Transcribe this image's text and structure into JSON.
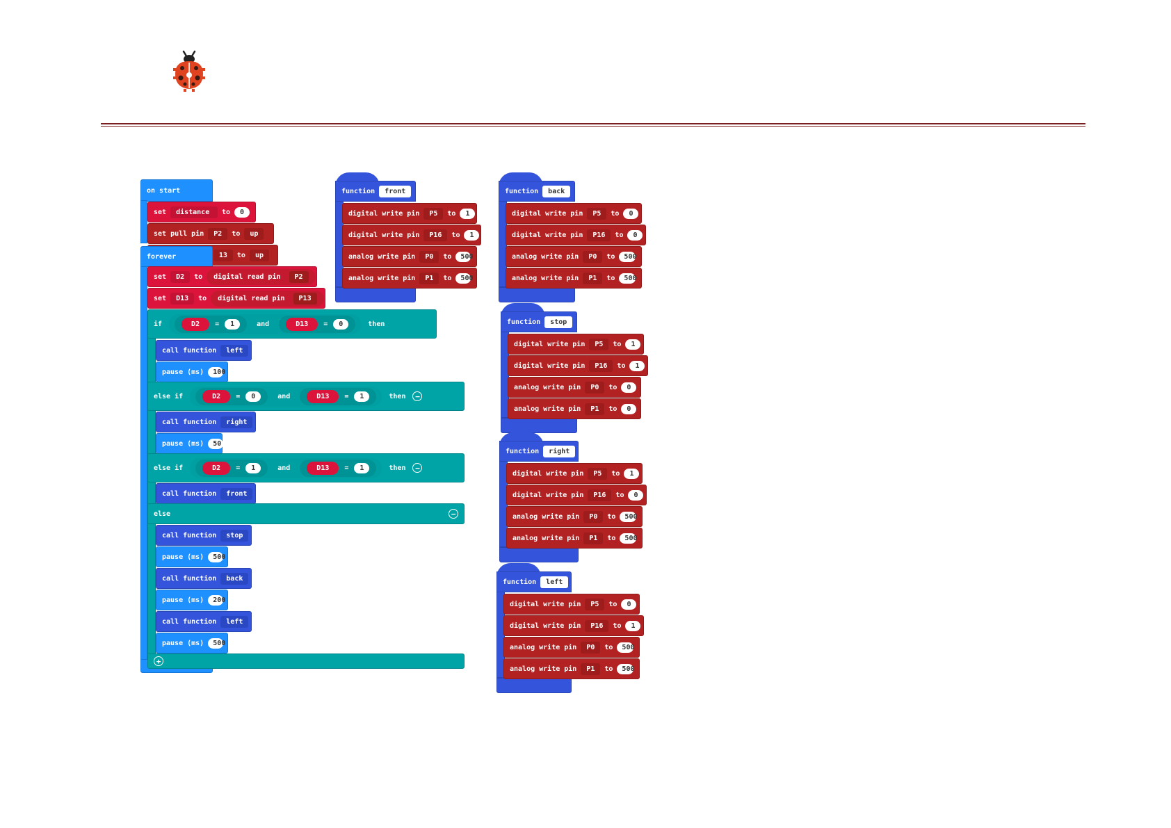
{
  "colors": {
    "event": "#1e90ff",
    "variables": "#dc143c",
    "pins": "#b22222",
    "functions": "#3455db",
    "logic": "#00a4a6",
    "header_rule": "#7a1f1f"
  },
  "icons": [
    "ladybug-logo-icon",
    "minus-circle-icon",
    "plus-circle-icon"
  ],
  "on_start": {
    "label": "on start",
    "set_kw": "set",
    "var": "distance",
    "to_kw": "to",
    "value": "0",
    "pull1": {
      "label": "set pull pin",
      "pin": "P2",
      "to_kw": "to",
      "mode": "up"
    },
    "pull2": {
      "pin_partial": "13",
      "to_kw": "to",
      "mode": "up"
    }
  },
  "forever": {
    "label": "forever",
    "set_d2": {
      "set_kw": "set",
      "var": "D2",
      "to_kw": "to",
      "fn": "digital read pin",
      "pin": "P2"
    },
    "set_d13": {
      "set_kw": "set",
      "var": "D13",
      "to_kw": "to",
      "fn": "digital read pin",
      "pin": "P13"
    },
    "if_block": {
      "if_kw": "if",
      "a_var": "D2",
      "a_op": "=",
      "a_val": "1",
      "and_kw": "and",
      "b_var": "D13",
      "b_op": "=",
      "b_val": "0",
      "then_kw": "then",
      "call_kw": "call function",
      "call_name": "left",
      "pause_kw": "pause (ms)",
      "pause_val": "100"
    },
    "elseif1": {
      "kw": "else if",
      "a_var": "D2",
      "a_op": "=",
      "a_val": "0",
      "and_kw": "and",
      "b_var": "D13",
      "b_op": "=",
      "b_val": "1",
      "then_kw": "then",
      "call_kw": "call function",
      "call_name": "right",
      "pause_kw": "pause (ms)",
      "pause_val": "50"
    },
    "elseif2": {
      "kw": "else if",
      "a_var": "D2",
      "a_op": "=",
      "a_val": "1",
      "and_kw": "and",
      "b_var": "D13",
      "b_op": "=",
      "b_val": "1",
      "then_kw": "then",
      "call_kw": "call function",
      "call_name": "front"
    },
    "else_block": {
      "kw": "else",
      "s1": {
        "call_kw": "call function",
        "name": "stop"
      },
      "p1": {
        "pause_kw": "pause (ms)",
        "val": "500"
      },
      "s2": {
        "call_kw": "call function",
        "name": "back"
      },
      "p2": {
        "pause_kw": "pause (ms)",
        "val": "200"
      },
      "s3": {
        "call_kw": "call function",
        "name": "left"
      },
      "p3": {
        "pause_kw": "pause (ms)",
        "val": "500"
      }
    }
  },
  "functions": [
    {
      "kw": "function",
      "name": "front",
      "rows": [
        {
          "label": "digital write pin",
          "pin": "P5",
          "to_kw": "to",
          "val": "1"
        },
        {
          "label": "digital write pin",
          "pin": "P16",
          "to_kw": "to",
          "val": "1"
        },
        {
          "label": "analog write pin",
          "pin": "P0",
          "to_kw": "to",
          "val": "500"
        },
        {
          "label": "analog write pin",
          "pin": "P1",
          "to_kw": "to",
          "val": "500"
        }
      ]
    },
    {
      "kw": "function",
      "name": "back",
      "rows": [
        {
          "label": "digital write pin",
          "pin": "P5",
          "to_kw": "to",
          "val": "0"
        },
        {
          "label": "digital write pin",
          "pin": "P16",
          "to_kw": "to",
          "val": "0"
        },
        {
          "label": "analog write pin",
          "pin": "P0",
          "to_kw": "to",
          "val": "500"
        },
        {
          "label": "analog write pin",
          "pin": "P1",
          "to_kw": "to",
          "val": "500"
        }
      ]
    },
    {
      "kw": "function",
      "name": "stop",
      "rows": [
        {
          "label": "digital write pin",
          "pin": "P5",
          "to_kw": "to",
          "val": "1"
        },
        {
          "label": "digital write pin",
          "pin": "P16",
          "to_kw": "to",
          "val": "1"
        },
        {
          "label": "analog write pin",
          "pin": "P0",
          "to_kw": "to",
          "val": "0"
        },
        {
          "label": "analog write pin",
          "pin": "P1",
          "to_kw": "to",
          "val": "0"
        }
      ]
    },
    {
      "kw": "function",
      "name": "right",
      "rows": [
        {
          "label": "digital write pin",
          "pin": "P5",
          "to_kw": "to",
          "val": "1"
        },
        {
          "label": "digital write pin",
          "pin": "P16",
          "to_kw": "to",
          "val": "0"
        },
        {
          "label": "analog write pin",
          "pin": "P0",
          "to_kw": "to",
          "val": "500"
        },
        {
          "label": "analog write pin",
          "pin": "P1",
          "to_kw": "to",
          "val": "500"
        }
      ]
    },
    {
      "kw": "function",
      "name": "left",
      "rows": [
        {
          "label": "digital write pin",
          "pin": "P5",
          "to_kw": "to",
          "val": "0"
        },
        {
          "label": "digital write pin",
          "pin": "P16",
          "to_kw": "to",
          "val": "1"
        },
        {
          "label": "analog write pin",
          "pin": "P0",
          "to_kw": "to",
          "val": "500"
        },
        {
          "label": "analog write pin",
          "pin": "P1",
          "to_kw": "to",
          "val": "500"
        }
      ]
    }
  ]
}
